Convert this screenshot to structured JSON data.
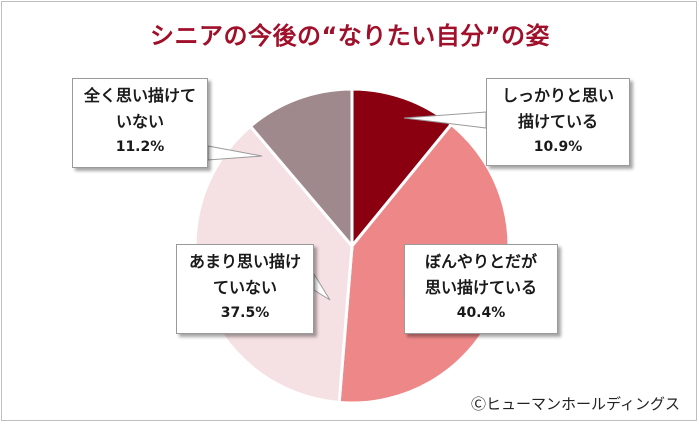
{
  "title": "シニアの今後の“なりたい自分”の姿",
  "copyright": "Ⓒヒューマンホールディングス",
  "chart_data": {
    "type": "pie",
    "start": "12 o'clock",
    "direction": "clockwise",
    "slices": [
      {
        "label_line1": "しっかりと思い",
        "label_line2": "描けている",
        "value": 10.9,
        "value_text": "10.9%",
        "color": "#8b0010"
      },
      {
        "label_line1": "ぼんやりとだが",
        "label_line2": "思い描けている",
        "value": 40.4,
        "value_text": "40.4%",
        "color": "#ee8888"
      },
      {
        "label_line1": "あまり思い描け",
        "label_line2": "ていない",
        "value": 37.5,
        "value_text": "37.5%",
        "color": "#f5e1e3"
      },
      {
        "label_line1": "全く思い描けて",
        "label_line2": "いない",
        "value": 11.2,
        "value_text": "11.2%",
        "color": "#a0898c"
      }
    ],
    "slice_border_color": "#ffffff"
  }
}
